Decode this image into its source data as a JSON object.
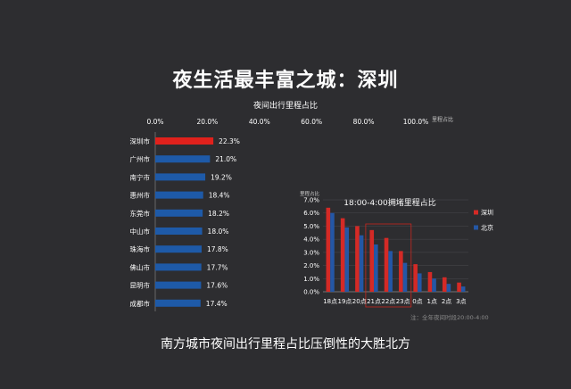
{
  "title": "夜生活最丰富之城：深圳",
  "caption": "南方城市夜间出行里程占比压倒性的大胜北方",
  "colors": {
    "background": "#2d2d30",
    "highlight": "#e0211c",
    "primary": "#1e5aa8",
    "shenzhen": "#d42a26",
    "beijing": "#2457a6",
    "text": "#ffffff",
    "muted": "#8a8a8a"
  },
  "chart_data": [
    {
      "type": "bar",
      "orientation": "horizontal",
      "title": "夜间出行里程占比",
      "xlabel": "里程占比",
      "xlim": [
        0,
        100
      ],
      "x_ticks": [
        "0.0%",
        "20.0%",
        "40.0%",
        "60.0%",
        "80.0%",
        "100.0%"
      ],
      "categories": [
        "深圳市",
        "广州市",
        "南宁市",
        "惠州市",
        "东莞市",
        "中山市",
        "珠海市",
        "佛山市",
        "昆明市",
        "成都市"
      ],
      "values": [
        22.3,
        21.0,
        19.2,
        18.4,
        18.2,
        18.0,
        17.8,
        17.7,
        17.6,
        17.4
      ],
      "value_labels": [
        "22.3%",
        "21.0%",
        "19.2%",
        "18.4%",
        "18.2%",
        "18.0%",
        "17.8%",
        "17.7%",
        "17.6%",
        "17.4%"
      ],
      "highlight_index": 0
    },
    {
      "type": "bar",
      "title": "18:00-4:00拥堵里程占比",
      "ylabel": "里程占比",
      "ylim": [
        0,
        7
      ],
      "y_ticks": [
        "0.0%",
        "1.0%",
        "2.0%",
        "3.0%",
        "4.0%",
        "5.0%",
        "6.0%",
        "7.0%"
      ],
      "categories": [
        "18点",
        "19点",
        "20点",
        "21点",
        "22点",
        "23点",
        "0点",
        "1点",
        "2点",
        "3点"
      ],
      "series": [
        {
          "name": "深圳",
          "values": [
            6.4,
            5.6,
            5.0,
            4.7,
            4.1,
            3.1,
            2.1,
            1.5,
            1.1,
            0.7
          ]
        },
        {
          "name": "北京",
          "values": [
            6.0,
            4.9,
            4.3,
            3.6,
            3.1,
            2.2,
            1.4,
            1.0,
            0.6,
            0.4
          ]
        }
      ],
      "legend_position": "right",
      "highlight_range": [
        "21点",
        "23点"
      ],
      "note": "注：全年夜间时段20:00-4:00"
    }
  ]
}
